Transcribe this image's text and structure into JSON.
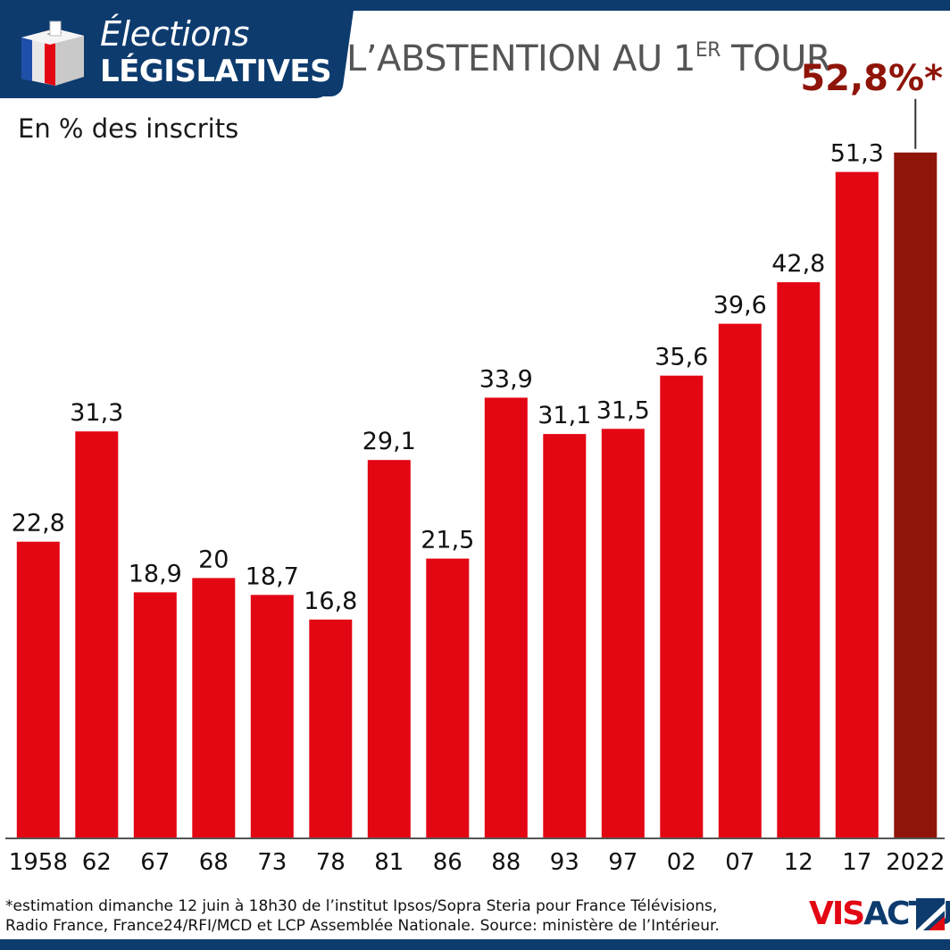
{
  "header": {
    "badge_line1": "Élections",
    "badge_line2": "LÉGISLATIVES",
    "title_main": "L’ABSTENTION AU 1",
    "title_sup": "ER",
    "title_end": " TOUR"
  },
  "chart_data": {
    "type": "bar",
    "title": "L’ABSTENTION AU 1ER TOUR",
    "ylabel": "En % des inscrits",
    "categories": [
      "1958",
      "62",
      "67",
      "68",
      "73",
      "78",
      "81",
      "86",
      "88",
      "93",
      "97",
      "02",
      "07",
      "12",
      "17",
      "2022"
    ],
    "values": [
      22.8,
      31.3,
      18.9,
      20,
      18.7,
      16.8,
      29.1,
      21.5,
      33.9,
      31.1,
      31.5,
      35.6,
      39.6,
      42.8,
      51.3,
      52.8
    ],
    "labels": [
      "22,8",
      "31,3",
      "18,9",
      "20",
      "18,7",
      "16,8",
      "29,1",
      "21,5",
      "33,9",
      "31,1",
      "31,5",
      "35,6",
      "39,6",
      "42,8",
      "51,3",
      ""
    ],
    "highlight": {
      "index": 15,
      "label": "52,8%*"
    },
    "ylim": [
      0,
      60
    ],
    "colors": {
      "bar": "#e30613",
      "highlight": "#8f1409",
      "axis": "#555555"
    }
  },
  "footnote": {
    "line1": "*estimation dimanche 12 juin à 18h30 de l’institut Ipsos/Sopra Steria pour France Télévisions,",
    "line2": "Radio France, France24/RFI/MCD et LCP Assemblée Nationale.  Source: ministère de l’Intérieur."
  },
  "logo": {
    "part1": "VIS",
    "part2": "ACTU"
  }
}
